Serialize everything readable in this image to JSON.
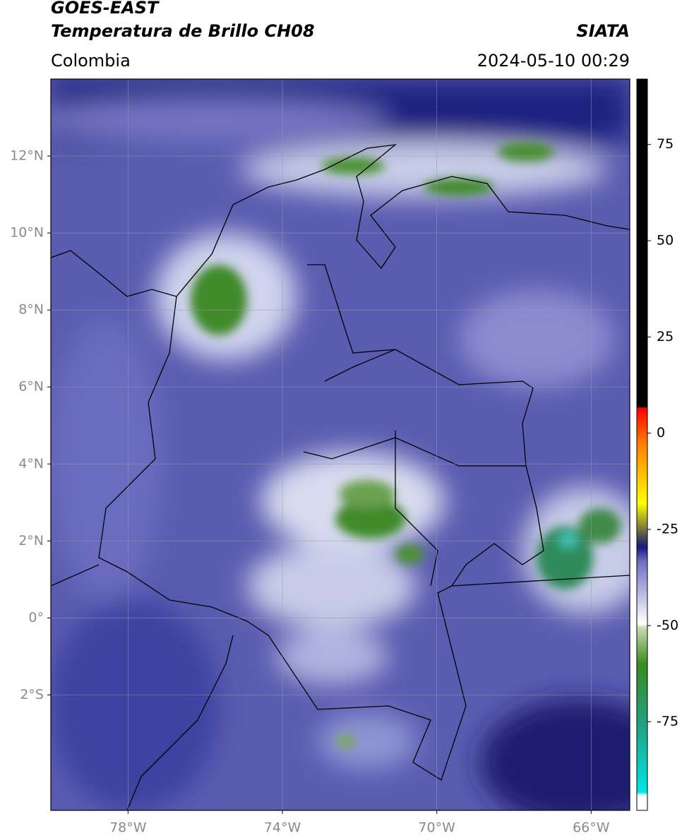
{
  "header": {
    "title_line1": "GOES-EAST",
    "title_line2": "Temperatura de Brillo CH08",
    "source": "SIATA",
    "region": "Colombia",
    "datetime": "2024-05-10 00:29"
  },
  "map": {
    "xlim": [
      -80,
      -65
    ],
    "ylim": [
      -5,
      14
    ],
    "grid": true,
    "xticks": [
      {
        "value": -78,
        "label": "78°W"
      },
      {
        "value": -74,
        "label": "74°W"
      },
      {
        "value": -70,
        "label": "70°W"
      },
      {
        "value": -66,
        "label": "66°W"
      }
    ],
    "yticks": [
      {
        "value": 12,
        "label": "12°N"
      },
      {
        "value": 10,
        "label": "10°N"
      },
      {
        "value": 8,
        "label": "8°N"
      },
      {
        "value": 6,
        "label": "6°N"
      },
      {
        "value": 4,
        "label": "4°N"
      },
      {
        "value": 2,
        "label": "2°N"
      },
      {
        "value": 0,
        "label": "0°"
      },
      {
        "value": -2,
        "label": "2°S"
      }
    ]
  },
  "colorbar": {
    "lim": [
      -98,
      92
    ],
    "ticks": [
      75,
      50,
      25,
      0,
      -25,
      -50,
      -75
    ]
  }
}
